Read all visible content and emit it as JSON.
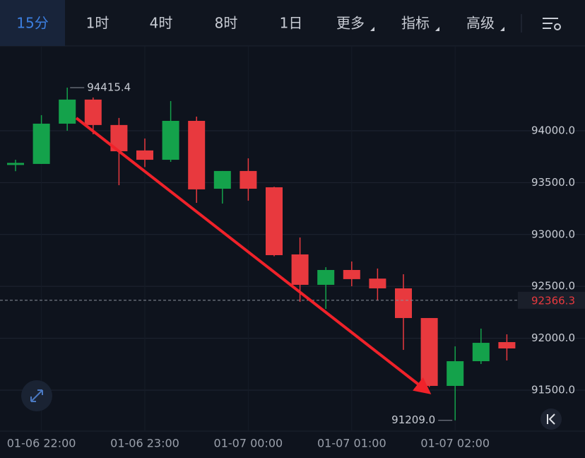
{
  "toolbar": {
    "tabs": [
      "15分",
      "1时",
      "4时",
      "8时",
      "1日"
    ],
    "menus": [
      "更多",
      "指标",
      "高级"
    ],
    "active": 0
  },
  "chart_data": {
    "type": "candlestick",
    "categories": [
      null,
      "01-06 22:00",
      null,
      null,
      null,
      "01-06 23:00",
      null,
      null,
      null,
      "01-07 00:00",
      null,
      null,
      null,
      "01-07 01:00",
      null,
      null,
      null,
      "01-07 02:00",
      null,
      null
    ],
    "open": [
      93670,
      93680,
      94068,
      94300,
      94055,
      93810,
      93720,
      94095,
      93441,
      93612,
      93455,
      92808,
      92515,
      92658,
      92575,
      92481,
      92195,
      91541,
      91779,
      91963
    ],
    "high": [
      93720,
      94150,
      94415.4,
      94320,
      94123,
      93925,
      94286,
      94136,
      93612,
      93734,
      93460,
      92971,
      92685,
      92740,
      92672,
      92617,
      92195,
      91922,
      92093,
      92038
    ],
    "low": [
      93610,
      93680,
      94000,
      93966,
      93475,
      93650,
      93700,
      93305,
      93298,
      93326,
      92790,
      92351,
      92283,
      92501,
      92365,
      91888,
      91530,
      91209,
      91752,
      91786
    ],
    "close": [
      93690,
      94068,
      94300,
      94055,
      93802,
      93720,
      94095,
      93435,
      93612,
      93441,
      92801,
      92515,
      92658,
      92570,
      92481,
      92195,
      91541,
      91779,
      91956,
      91902
    ],
    "up_color": "#14a24b",
    "down_color": "#e8393e",
    "ylim": [
      91105,
      94817
    ],
    "yticks": [
      {
        "value": 91500,
        "label": "91500.0"
      },
      {
        "value": 92000,
        "label": "92000.0"
      },
      {
        "value": 92500,
        "label": "92500.0"
      },
      {
        "value": 93000,
        "label": "93000.0"
      },
      {
        "value": 93500,
        "label": "93500.0"
      },
      {
        "value": 94000,
        "label": "94000.0"
      }
    ],
    "grid": true,
    "current_price": 92366.3,
    "annotations": [
      {
        "value": 94415.4,
        "label": "94415.4"
      },
      {
        "value": 91209,
        "label": "91209.0"
      }
    ]
  }
}
